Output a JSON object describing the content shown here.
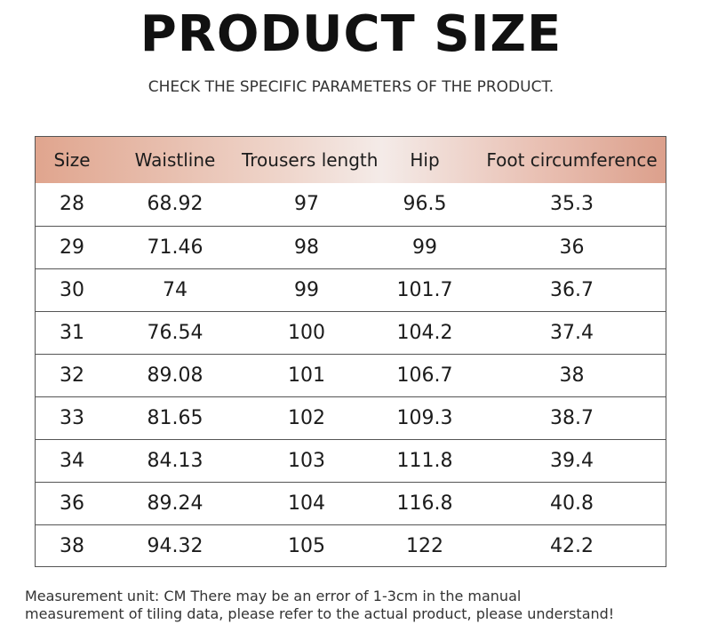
{
  "header": {
    "title": "PRODUCT SIZE",
    "subtitle": "CHECK THE SPECIFIC PARAMETERS OF THE PRODUCT."
  },
  "table": {
    "columns": [
      "Size",
      "Waistline",
      "Trousers length",
      "Hip",
      "Foot circumference"
    ],
    "rows": [
      [
        "28",
        "68.92",
        "97",
        "96.5",
        "35.3"
      ],
      [
        "29",
        "71.46",
        "98",
        "99",
        "36"
      ],
      [
        "30",
        "74",
        "99",
        "101.7",
        "36.7"
      ],
      [
        "31",
        "76.54",
        "100",
        "104.2",
        "37.4"
      ],
      [
        "32",
        "89.08",
        "101",
        "106.7",
        "38"
      ],
      [
        "33",
        "81.65",
        "102",
        "109.3",
        "38.7"
      ],
      [
        "34",
        "84.13",
        "103",
        "111.8",
        "39.4"
      ],
      [
        "36",
        "89.24",
        "104",
        "116.8",
        "40.8"
      ],
      [
        "38",
        "94.32",
        "105",
        "122",
        "42.2"
      ]
    ]
  },
  "footer": {
    "note_line1": "Measurement unit: CM There may be an error of 1-3cm in the manual",
    "note_line2": "measurement of tiling data, please refer to the actual product, please understand!"
  },
  "colors": {
    "header_gradient_edge": "#e0a58e",
    "header_gradient_center": "#f4ebe8",
    "border": "#555555"
  }
}
